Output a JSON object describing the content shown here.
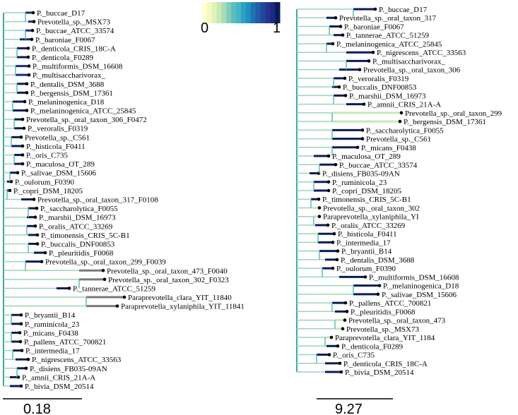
{
  "colorbar": {
    "min_label": "0",
    "max_label": "1",
    "colors": [
      "#ffffcc",
      "#f1f9bf",
      "#e0f3b6",
      "#c7e9b4",
      "#a8dcb6",
      "#7fcdbb",
      "#5cbcc0",
      "#41b6c4",
      "#2ea0c0",
      "#1d91c0",
      "#2072b2",
      "#225ea8",
      "#23489a",
      "#253494",
      "#1b2980",
      "#081d58"
    ]
  },
  "left_tree": {
    "scale_label": "0.18",
    "leaves": [
      {
        "label": "P._buccae_D17",
        "support": 0.9
      },
      {
        "label": "Prevotella_sp._MSX73",
        "support": 0.9
      },
      {
        "label": "P._buccae_ATCC_33574",
        "support": 0.9
      },
      {
        "label": "P._baroniae_F0067",
        "support": 0.95
      },
      {
        "label": "P._denticola_CRIS_18C-A",
        "support": 1.0
      },
      {
        "label": "P._denticola_F0289",
        "support": 1.0
      },
      {
        "label": "P._multiformis_DSM_16608",
        "support": 0.95
      },
      {
        "label": "P._multisaccharivorax_",
        "support": 0.95
      },
      {
        "label": "P._dentalis_DSM_3688",
        "support": 1.0
      },
      {
        "label": "P._bergensis_DSM_17361",
        "support": 1.0
      },
      {
        "label": "P._melaninogenica_D18",
        "support": 1.0
      },
      {
        "label": "P._melaninogenica_ATCC_25845",
        "support": 1.0
      },
      {
        "label": "Prevotella_sp._oral_taxon_306_F0472",
        "support": 1.0
      },
      {
        "label": "P._veroralis_F0319",
        "support": 1.0
      },
      {
        "label": "Prevotella_sp._C561",
        "support": 1.0
      },
      {
        "label": "P._histicola_F0411",
        "support": 1.0
      },
      {
        "label": "P._oris_C735",
        "support": 1.0
      },
      {
        "label": "P._maculosa_OT_289",
        "support": 1.0
      },
      {
        "label": "P._salivae_DSM_15606",
        "support": 1.0
      },
      {
        "label": "P._oulorum_F0390",
        "support": 1.0
      },
      {
        "label": "P._copri_DSM_18205",
        "support": 1.0
      },
      {
        "label": "Prevotella_sp._oral_taxon_317_F0108",
        "support": 1.0
      },
      {
        "label": "P._saccharolytica_F0055",
        "support": 1.0
      },
      {
        "label": "P._marshii_DSM_16973",
        "support": 1.0
      },
      {
        "label": "P._oralis_ATCC_33269",
        "support": 1.0
      },
      {
        "label": "P._timonensis_CRIS_5C-B1",
        "support": 1.0
      },
      {
        "label": "P._buccalis_DNF00853",
        "support": 1.0
      },
      {
        "label": "P._pleuritidis_F0068",
        "support": 1.0
      },
      {
        "label": "Prevotella_sp._oral_taxon_299_F0039",
        "support": 1.0
      },
      {
        "label": "Prevotella_sp._oral_taxon_473_F0040",
        "support": 0.5
      },
      {
        "label": "Prevotella_sp._oral_taxon_302_F0323",
        "support": 0.5
      },
      {
        "label": "P._tannerae_ATCC_51259",
        "support": 1.0
      },
      {
        "label": "Paraprevotella_clara_YIT_11840",
        "support": 0.5
      },
      {
        "label": "Paraprevotella_xylaniphila_YIT_11841",
        "support": 0.5
      },
      {
        "label": "P._bryantii_B14",
        "support": 1.0
      },
      {
        "label": "P._ruminicola_23",
        "support": 1.0
      },
      {
        "label": "P._micans_F0438",
        "support": 1.0
      },
      {
        "label": "P._pallens_ATCC_700821",
        "support": 1.0
      },
      {
        "label": "P._intermedia_17",
        "support": 1.0
      },
      {
        "label": "P._nigrescens_ATCC_33563",
        "support": 1.0
      },
      {
        "label": "P._disiens_FB035-09AN",
        "support": 1.0
      },
      {
        "label": "P._amnii_CRIS_21A-A",
        "support": 1.0
      },
      {
        "label": "P._bivia_DSM_20514",
        "support": 1.0
      }
    ]
  },
  "right_tree": {
    "scale_label": "9.27",
    "leaves": [
      {
        "label": "P._buccae_D17",
        "support": 1.0
      },
      {
        "label": "Prevotella_sp._oral_taxon_317",
        "support": 1.0
      },
      {
        "label": "P._baroniae_F0067",
        "support": 1.0
      },
      {
        "label": "P._tannerae_ATCC_51259",
        "support": 1.0
      },
      {
        "label": "P._melaninogenica_ATCC_25845",
        "support": 1.0
      },
      {
        "label": "P._nigrescens_ATCC_33563",
        "support": 1.0
      },
      {
        "label": "P._multisaccharivorax_",
        "support": 1.0
      },
      {
        "label": "Prevotella_sp._oral_taxon_306",
        "support": 1.0
      },
      {
        "label": "P._veroralis_F0319",
        "support": 1.0
      },
      {
        "label": "P._buccalis_DNF00853",
        "support": 1.0
      },
      {
        "label": "P._marshii_DSM_16973",
        "support": 1.0
      },
      {
        "label": "P._amnii_CRIS_21A-A",
        "support": 1.0
      },
      {
        "label": "Prevotella_sp._oral_taxon_299",
        "support": 0.2
      },
      {
        "label": "P._bergensis_DSM_17361",
        "support": 0.2
      },
      {
        "label": "P._saccharolytica_F0055",
        "support": 1.0
      },
      {
        "label": "Prevotella_sp._C561",
        "support": 1.0
      },
      {
        "label": "P._micans_F0438",
        "support": 1.0
      },
      {
        "label": "P._maculosa_OT_289",
        "support": 1.0
      },
      {
        "label": "P._buccae_ATCC_33574",
        "support": 1.0
      },
      {
        "label": "P._disiens_FB035-09AN",
        "support": 1.0
      },
      {
        "label": "P._ruminicola_23",
        "support": 1.0
      },
      {
        "label": "P._copri_DSM_18205",
        "support": 1.0
      },
      {
        "label": "P._timonensis_CRIS_5C-B1",
        "support": 1.0
      },
      {
        "label": "Prevotella_sp._oral_taxon_302",
        "support": 0.2
      },
      {
        "label": "Paraprevotella_xylaniphila_YI",
        "support": 0.2
      },
      {
        "label": "P._oralis_ATCC_33269",
        "support": 1.0
      },
      {
        "label": "P._histicola_F0411",
        "support": 1.0
      },
      {
        "label": "P._intermedia_17",
        "support": 1.0
      },
      {
        "label": "P._bryantii_B14",
        "support": 1.0
      },
      {
        "label": "P._dentalis_DSM_3688",
        "support": 1.0
      },
      {
        "label": "P._oulorum_F0390",
        "support": 1.0
      },
      {
        "label": "P._multiformis_DSM_16608",
        "support": 1.0
      },
      {
        "label": "P._melaninogenica_D18",
        "support": 1.0
      },
      {
        "label": "P._salivae_DSM_15606",
        "support": 1.0
      },
      {
        "label": "P._pallens_ATCC_700821",
        "support": 1.0
      },
      {
        "label": "P._pleuritidis_F0068",
        "support": 1.0
      },
      {
        "label": "Prevotella_sp._oral_taxon_473",
        "support": 0.2
      },
      {
        "label": "Prevotella_sp._MSX73",
        "support": 0.2
      },
      {
        "label": "Paraprevotella_clara_YIT_1184",
        "support": 0.2
      },
      {
        "label": "P._denticola_F0289",
        "support": 1.0
      },
      {
        "label": "P._oris_C735",
        "support": 1.0
      },
      {
        "label": "P._denticola_CRIS_18C-A",
        "support": 1.0
      },
      {
        "label": "P._bivia_DSM_20514",
        "support": 1.0
      }
    ]
  }
}
